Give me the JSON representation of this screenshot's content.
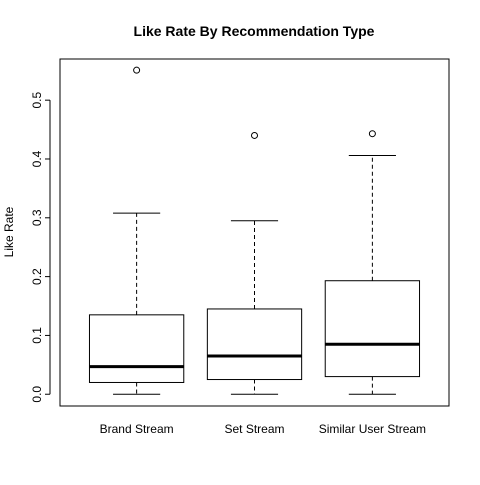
{
  "chart_data": {
    "type": "boxplot",
    "title": "Like Rate By Recommendation Type",
    "xlabel": "",
    "ylabel": "Like Rate",
    "ylim": [
      -0.02,
      0.57
    ],
    "yticks": [
      "0.0",
      "0.1",
      "0.2",
      "0.3",
      "0.4",
      "0.5"
    ],
    "grid": false,
    "categories": [
      "Brand Stream",
      "Set Stream",
      "Similar User Stream"
    ],
    "boxes": [
      {
        "category": "Brand Stream",
        "whisker_low": 0.0,
        "q1": 0.02,
        "median": 0.047,
        "q3": 0.135,
        "whisker_high": 0.308,
        "outliers": [
          0.551
        ]
      },
      {
        "category": "Set Stream",
        "whisker_low": 0.0,
        "q1": 0.025,
        "median": 0.065,
        "q3": 0.145,
        "whisker_high": 0.295,
        "outliers": [
          0.44
        ]
      },
      {
        "category": "Similar User Stream",
        "whisker_low": 0.0,
        "q1": 0.03,
        "median": 0.085,
        "q3": 0.193,
        "whisker_high": 0.406,
        "outliers": [
          0.443
        ]
      }
    ],
    "colors": {
      "line": "#000000",
      "box_fill": "#ffffff",
      "background": "#ffffff"
    }
  }
}
